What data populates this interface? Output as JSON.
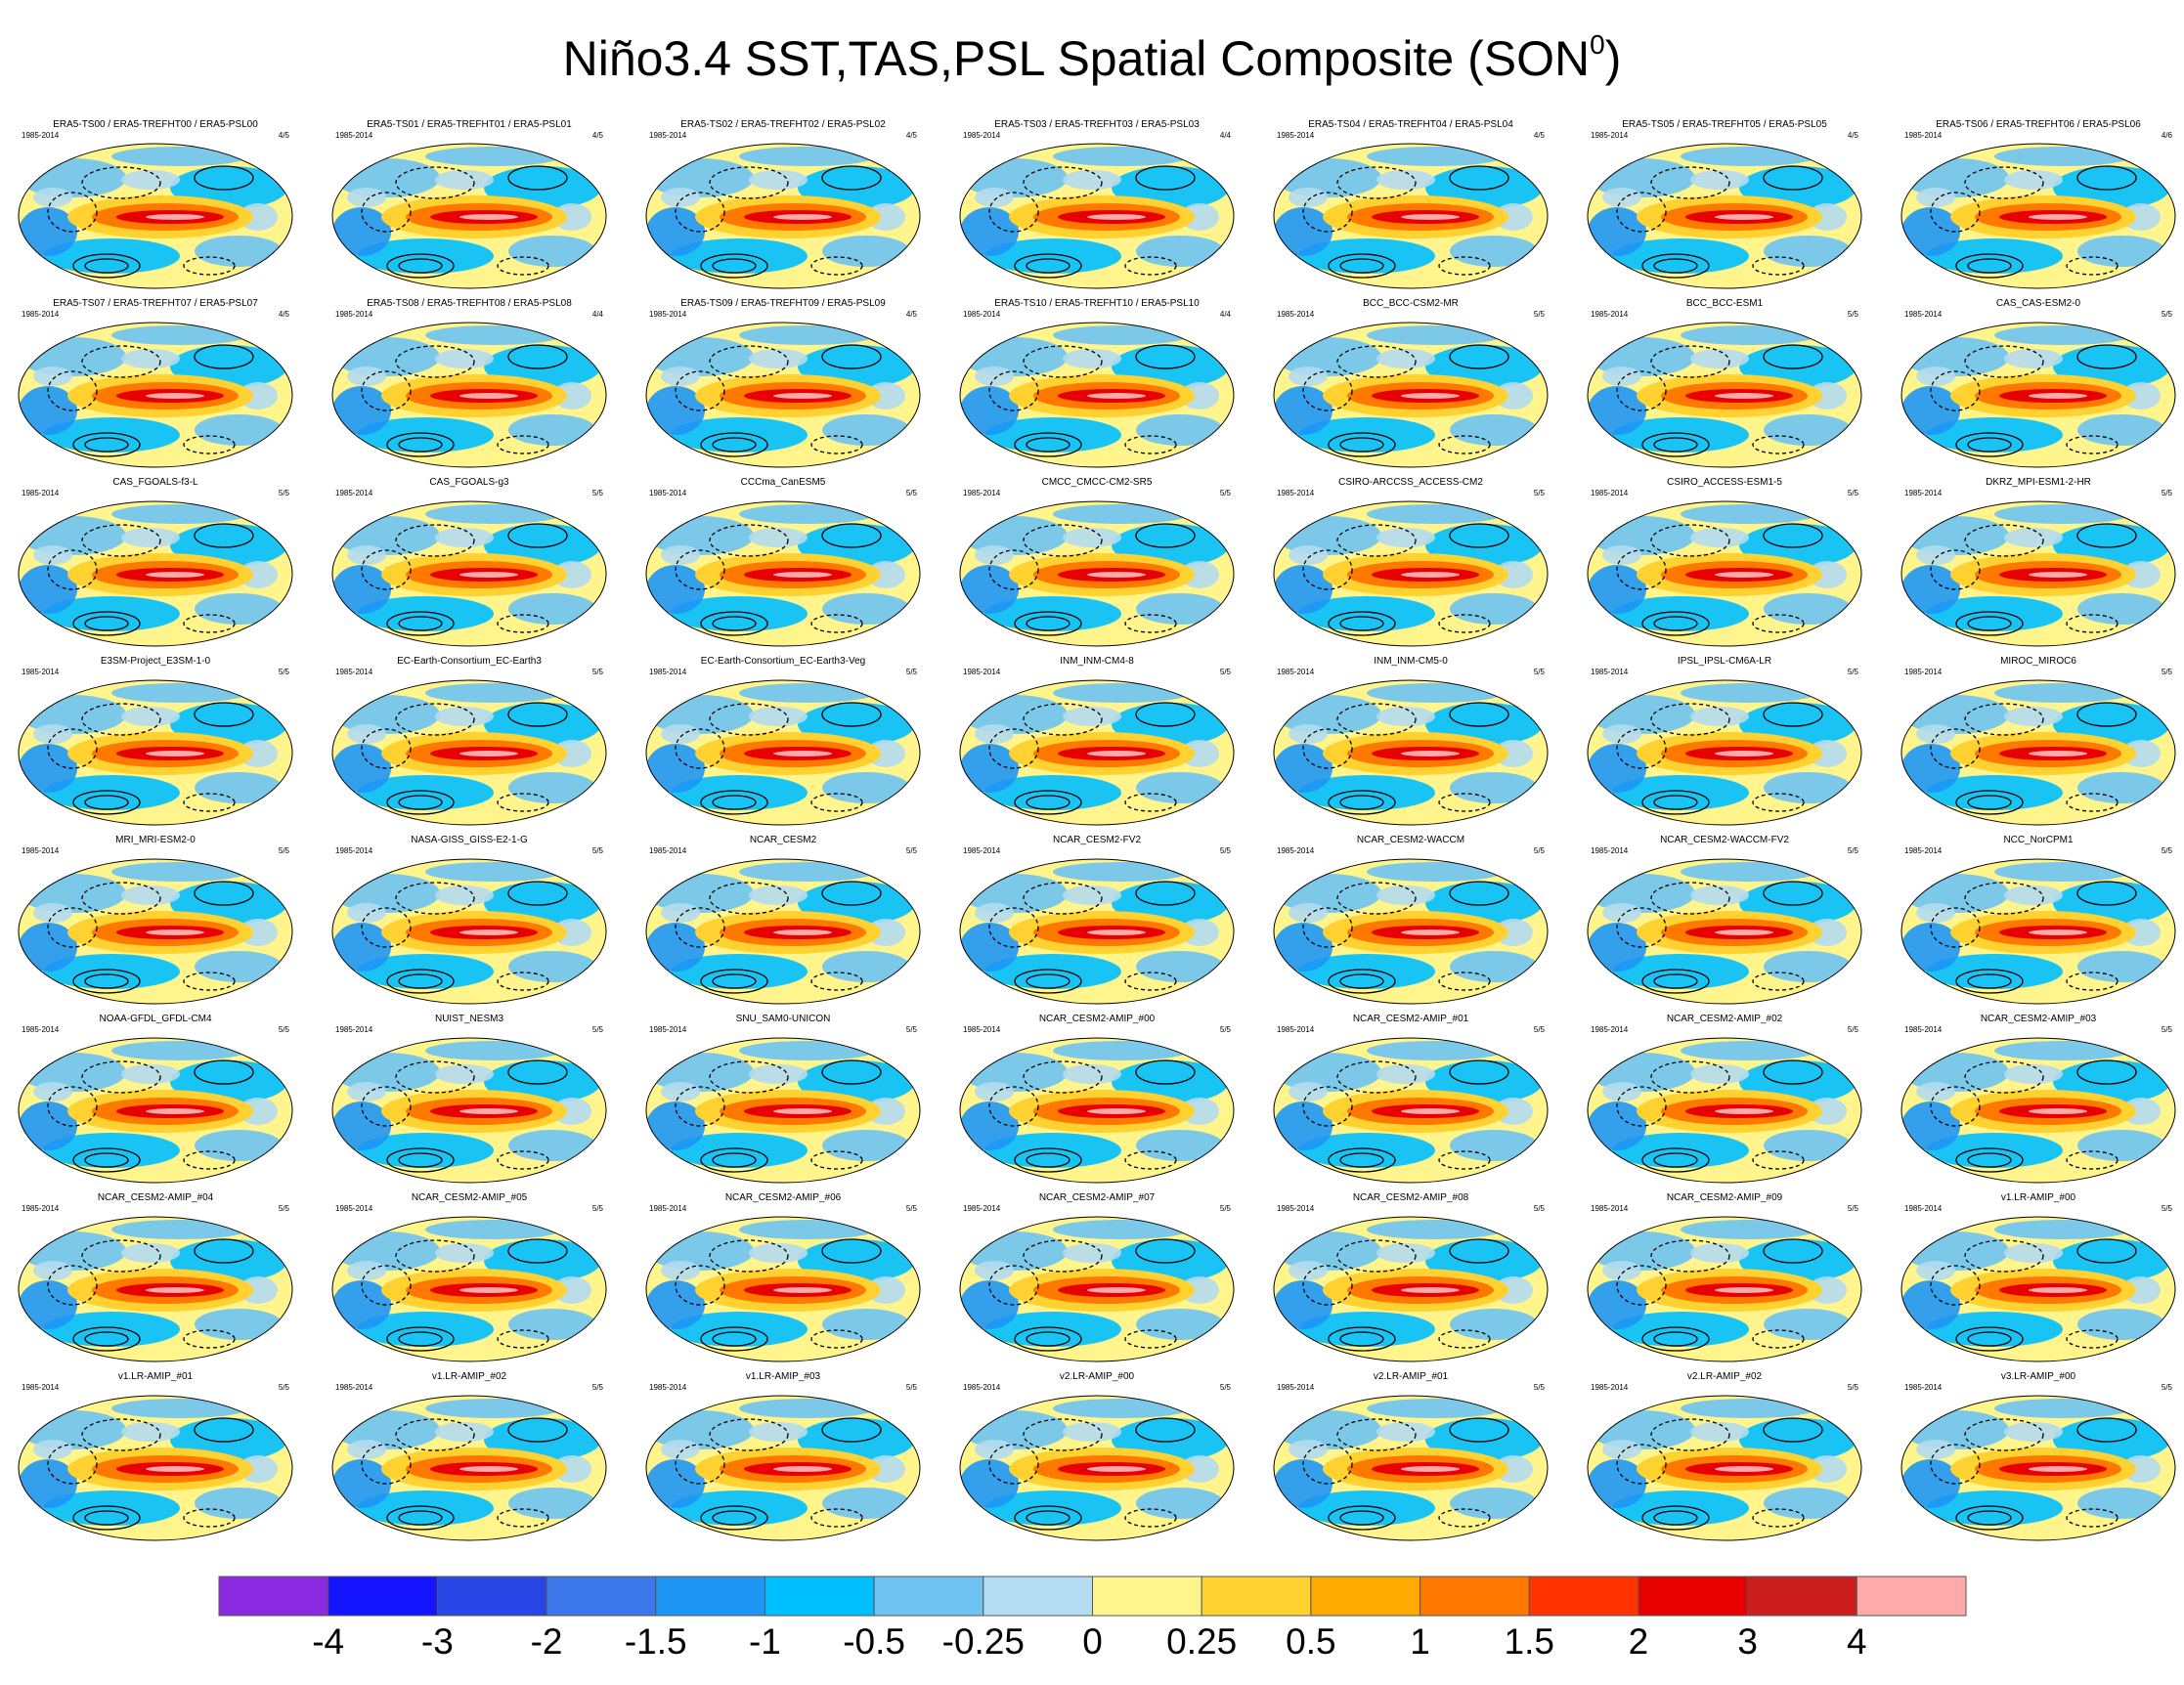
{
  "title": {
    "text": "Niño3.4 SST,TAS,PSL Spatial Composite (SON",
    "superscript": "0",
    "close": ")"
  },
  "chart_data": {
    "type": "heatmap",
    "title": "Niño3.4 SST,TAS,PSL Spatial Composite (SON0)",
    "layout": {
      "rows": 8,
      "cols": 7
    },
    "panels": [
      {
        "name": "ERA5-TS00 / ERA5-TREFHT00 / ERA5-PSL00",
        "period": "1985-2014",
        "fraction": "4/5"
      },
      {
        "name": "ERA5-TS01 / ERA5-TREFHT01 / ERA5-PSL01",
        "period": "1985-2014",
        "fraction": "4/5"
      },
      {
        "name": "ERA5-TS02 / ERA5-TREFHT02 / ERA5-PSL02",
        "period": "1985-2014",
        "fraction": "4/5"
      },
      {
        "name": "ERA5-TS03 / ERA5-TREFHT03 / ERA5-PSL03",
        "period": "1985-2014",
        "fraction": "4/4"
      },
      {
        "name": "ERA5-TS04 / ERA5-TREFHT04 / ERA5-PSL04",
        "period": "1985-2014",
        "fraction": "4/5"
      },
      {
        "name": "ERA5-TS05 / ERA5-TREFHT05 / ERA5-PSL05",
        "period": "1985-2014",
        "fraction": "4/5"
      },
      {
        "name": "ERA5-TS06 / ERA5-TREFHT06 / ERA5-PSL06",
        "period": "1985-2014",
        "fraction": "4/6"
      },
      {
        "name": "ERA5-TS07 / ERA5-TREFHT07 / ERA5-PSL07",
        "period": "1985-2014",
        "fraction": "4/5"
      },
      {
        "name": "ERA5-TS08 / ERA5-TREFHT08 / ERA5-PSL08",
        "period": "1985-2014",
        "fraction": "4/4"
      },
      {
        "name": "ERA5-TS09 / ERA5-TREFHT09 / ERA5-PSL09",
        "period": "1985-2014",
        "fraction": "4/5"
      },
      {
        "name": "ERA5-TS10 / ERA5-TREFHT10 / ERA5-PSL10",
        "period": "1985-2014",
        "fraction": "4/4"
      },
      {
        "name": "BCC_BCC-CSM2-MR",
        "period": "1985-2014",
        "fraction": "5/5"
      },
      {
        "name": "BCC_BCC-ESM1",
        "period": "1985-2014",
        "fraction": "5/5"
      },
      {
        "name": "CAS_CAS-ESM2-0",
        "period": "1985-2014",
        "fraction": "5/5"
      },
      {
        "name": "CAS_FGOALS-f3-L",
        "period": "1985-2014",
        "fraction": "5/5"
      },
      {
        "name": "CAS_FGOALS-g3",
        "period": "1985-2014",
        "fraction": "5/5"
      },
      {
        "name": "CCCma_CanESM5",
        "period": "1985-2014",
        "fraction": "5/5"
      },
      {
        "name": "CMCC_CMCC-CM2-SR5",
        "period": "1985-2014",
        "fraction": "5/5"
      },
      {
        "name": "CSIRO-ARCCSS_ACCESS-CM2",
        "period": "1985-2014",
        "fraction": "5/5"
      },
      {
        "name": "CSIRO_ACCESS-ESM1-5",
        "period": "1985-2014",
        "fraction": "5/5"
      },
      {
        "name": "DKRZ_MPI-ESM1-2-HR",
        "period": "1985-2014",
        "fraction": "5/5"
      },
      {
        "name": "E3SM-Project_E3SM-1-0",
        "period": "1985-2014",
        "fraction": "5/5"
      },
      {
        "name": "EC-Earth-Consortium_EC-Earth3",
        "period": "1985-2014",
        "fraction": "5/5"
      },
      {
        "name": "EC-Earth-Consortium_EC-Earth3-Veg",
        "period": "1985-2014",
        "fraction": "5/5"
      },
      {
        "name": "INM_INM-CM4-8",
        "period": "1985-2014",
        "fraction": "5/5"
      },
      {
        "name": "INM_INM-CM5-0",
        "period": "1985-2014",
        "fraction": "5/5"
      },
      {
        "name": "IPSL_IPSL-CM6A-LR",
        "period": "1985-2014",
        "fraction": "5/5"
      },
      {
        "name": "MIROC_MIROC6",
        "period": "1985-2014",
        "fraction": "5/5"
      },
      {
        "name": "MRI_MRI-ESM2-0",
        "period": "1985-2014",
        "fraction": "5/5"
      },
      {
        "name": "NASA-GISS_GISS-E2-1-G",
        "period": "1985-2014",
        "fraction": "5/5"
      },
      {
        "name": "NCAR_CESM2",
        "period": "1985-2014",
        "fraction": "5/5"
      },
      {
        "name": "NCAR_CESM2-FV2",
        "period": "1985-2014",
        "fraction": "5/5"
      },
      {
        "name": "NCAR_CESM2-WACCM",
        "period": "1985-2014",
        "fraction": "5/5"
      },
      {
        "name": "NCAR_CESM2-WACCM-FV2",
        "period": "1985-2014",
        "fraction": "5/5"
      },
      {
        "name": "NCC_NorCPM1",
        "period": "1985-2014",
        "fraction": "5/5"
      },
      {
        "name": "NOAA-GFDL_GFDL-CM4",
        "period": "1985-2014",
        "fraction": "5/5"
      },
      {
        "name": "NUIST_NESM3",
        "period": "1985-2014",
        "fraction": "5/5"
      },
      {
        "name": "SNU_SAM0-UNICON",
        "period": "1985-2014",
        "fraction": "5/5"
      },
      {
        "name": "NCAR_CESM2-AMIP_#00",
        "period": "1985-2014",
        "fraction": "5/5"
      },
      {
        "name": "NCAR_CESM2-AMIP_#01",
        "period": "1985-2014",
        "fraction": "5/5"
      },
      {
        "name": "NCAR_CESM2-AMIP_#02",
        "period": "1985-2014",
        "fraction": "5/5"
      },
      {
        "name": "NCAR_CESM2-AMIP_#03",
        "period": "1985-2014",
        "fraction": "5/5"
      },
      {
        "name": "NCAR_CESM2-AMIP_#04",
        "period": "1985-2014",
        "fraction": "5/5"
      },
      {
        "name": "NCAR_CESM2-AMIP_#05",
        "period": "1985-2014",
        "fraction": "5/5"
      },
      {
        "name": "NCAR_CESM2-AMIP_#06",
        "period": "1985-2014",
        "fraction": "5/5"
      },
      {
        "name": "NCAR_CESM2-AMIP_#07",
        "period": "1985-2014",
        "fraction": "5/5"
      },
      {
        "name": "NCAR_CESM2-AMIP_#08",
        "period": "1985-2014",
        "fraction": "5/5"
      },
      {
        "name": "NCAR_CESM2-AMIP_#09",
        "period": "1985-2014",
        "fraction": "5/5"
      },
      {
        "name": "v1.LR-AMIP_#00",
        "period": "1985-2014",
        "fraction": "5/5"
      },
      {
        "name": "v1.LR-AMIP_#01",
        "period": "1985-2014",
        "fraction": "5/5"
      },
      {
        "name": "v1.LR-AMIP_#02",
        "period": "1985-2014",
        "fraction": "5/5"
      },
      {
        "name": "v1.LR-AMIP_#03",
        "period": "1985-2014",
        "fraction": "5/5"
      },
      {
        "name": "v2.LR-AMIP_#00",
        "period": "1985-2014",
        "fraction": "5/5"
      },
      {
        "name": "v2.LR-AMIP_#01",
        "period": "1985-2014",
        "fraction": "5/5"
      },
      {
        "name": "v2.LR-AMIP_#02",
        "period": "1985-2014",
        "fraction": "5/5"
      },
      {
        "name": "v3.LR-AMIP_#00",
        "period": "1985-2014",
        "fraction": "5/5"
      }
    ],
    "colorbar": {
      "levels": [
        "-4",
        "-3",
        "-2",
        "-1.5",
        "-1",
        "-0.5",
        "-0.25",
        "0",
        "0.25",
        "0.5",
        "1",
        "1.5",
        "2",
        "3",
        "4"
      ],
      "colors": [
        "#8a2be2",
        "#1414ff",
        "#2846e6",
        "#3c78eb",
        "#1e96f5",
        "#00bfff",
        "#6ec3f2",
        "#b4dcf0",
        "#fff58c",
        "#ffd232",
        "#ffaa00",
        "#ff7800",
        "#ff3200",
        "#e60000",
        "#cd1e1e",
        "#ffaaaa"
      ]
    }
  }
}
